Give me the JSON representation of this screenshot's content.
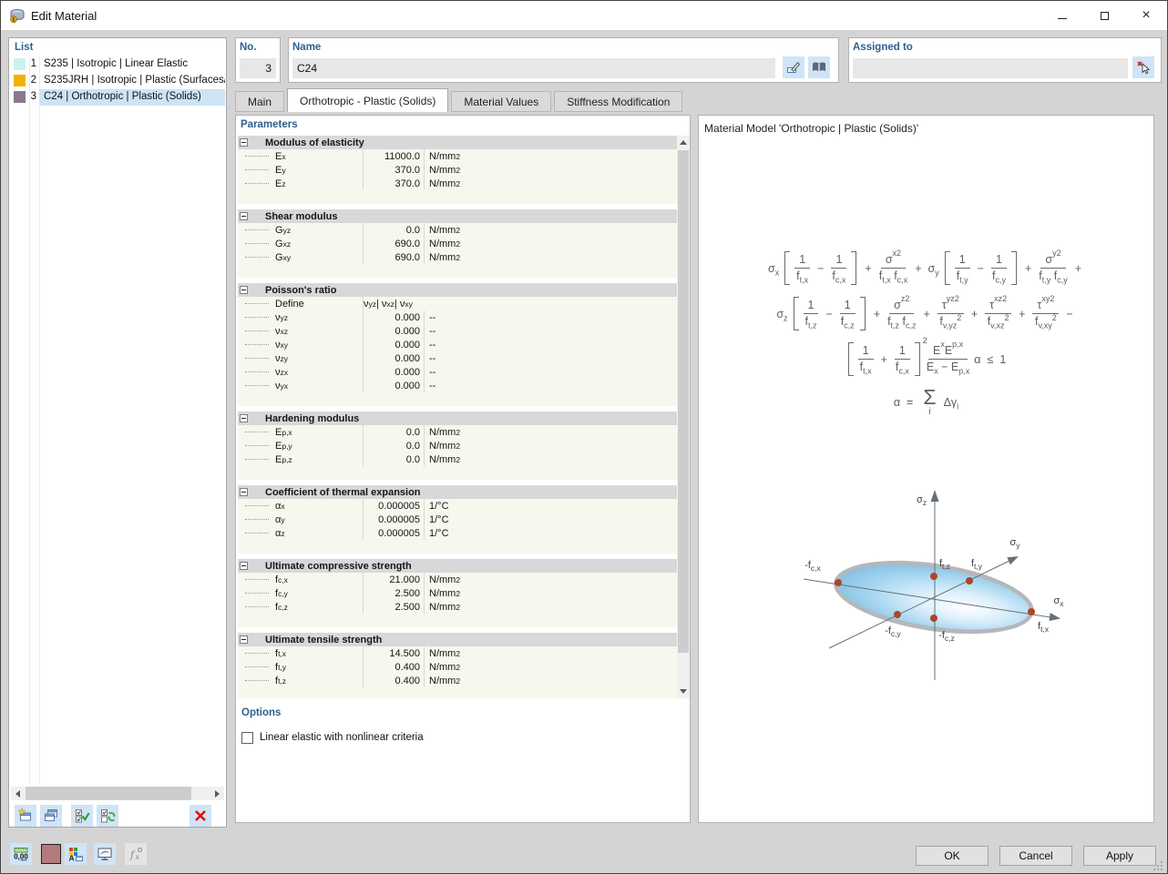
{
  "window": {
    "title": "Edit Material",
    "controls": {
      "minimize": "minimize",
      "maximize": "maximize",
      "close": "×"
    }
  },
  "list": {
    "label": "List",
    "items": [
      {
        "num": "1",
        "name": "S235 | Isotropic | Linear Elastic",
        "color": "#c9f2ef",
        "selected": false
      },
      {
        "num": "2",
        "name": "S235JRH | Isotropic | Plastic (Surfaces/",
        "color": "#f0b400",
        "selected": false
      },
      {
        "num": "3",
        "name": "C24 | Orthotropic | Plastic (Solids)",
        "color": "#8b798b",
        "selected": true
      }
    ]
  },
  "header": {
    "no_label": "No.",
    "no_value": "3",
    "name_label": "Name",
    "name_value": "C24",
    "assigned_label": "Assigned to",
    "assigned_value": ""
  },
  "tabs": [
    {
      "label": "Main",
      "active": false
    },
    {
      "label": "Orthotropic - Plastic (Solids)",
      "active": true
    },
    {
      "label": "Material Values",
      "active": false
    },
    {
      "label": "Stiffness Modification",
      "active": false
    }
  ],
  "parameters": {
    "label": "Parameters",
    "sections": [
      {
        "title": "Modulus of elasticity",
        "rows": [
          {
            "label": "E_x",
            "value": "11000.0",
            "unit": "N/mm^2"
          },
          {
            "label": "E_y",
            "value": "370.0",
            "unit": "N/mm^2"
          },
          {
            "label": "E_z",
            "value": "370.0",
            "unit": "N/mm^2"
          }
        ]
      },
      {
        "title": "Shear modulus",
        "rows": [
          {
            "label": "G_yz",
            "value": "0.0",
            "unit": "N/mm^2"
          },
          {
            "label": "G_xz",
            "value": "690.0",
            "unit": "N/mm^2"
          },
          {
            "label": "G_xy",
            "value": "690.0",
            "unit": "N/mm^2"
          }
        ]
      },
      {
        "title": "Poisson's ratio",
        "rows": [
          {
            "label": "Define",
            "value": "ν_yz | ν_xz | ν_xy",
            "unit": "",
            "wide": true
          },
          {
            "label": "ν_yz",
            "value": "0.000",
            "unit": "--"
          },
          {
            "label": "ν_xz",
            "value": "0.000",
            "unit": "--"
          },
          {
            "label": "ν_xy",
            "value": "0.000",
            "unit": "--"
          },
          {
            "label": "ν_zy",
            "value": "0.000",
            "unit": "--"
          },
          {
            "label": "ν_zx",
            "value": "0.000",
            "unit": "--"
          },
          {
            "label": "ν_yx",
            "value": "0.000",
            "unit": "--"
          }
        ]
      },
      {
        "title": "Hardening modulus",
        "rows": [
          {
            "label": "E_p,x",
            "value": "0.0",
            "unit": "N/mm^2"
          },
          {
            "label": "E_p,y",
            "value": "0.0",
            "unit": "N/mm^2"
          },
          {
            "label": "E_p,z",
            "value": "0.0",
            "unit": "N/mm^2"
          }
        ]
      },
      {
        "title": "Coefficient of thermal expansion",
        "rows": [
          {
            "label": "α_x",
            "value": "0.000005",
            "unit": "1/°C"
          },
          {
            "label": "α_y",
            "value": "0.000005",
            "unit": "1/°C"
          },
          {
            "label": "α_z",
            "value": "0.000005",
            "unit": "1/°C"
          }
        ]
      },
      {
        "title": "Ultimate compressive strength",
        "rows": [
          {
            "label": "f_c,x",
            "value": "21.000",
            "unit": "N/mm^2"
          },
          {
            "label": "f_c,y",
            "value": "2.500",
            "unit": "N/mm^2"
          },
          {
            "label": "f_c,z",
            "value": "2.500",
            "unit": "N/mm^2"
          }
        ]
      },
      {
        "title": "Ultimate tensile strength",
        "rows": [
          {
            "label": "f_t,x",
            "value": "14.500",
            "unit": "N/mm^2"
          },
          {
            "label": "f_t,y",
            "value": "0.400",
            "unit": "N/mm^2"
          },
          {
            "label": "f_t,z",
            "value": "0.400",
            "unit": "N/mm^2"
          }
        ]
      }
    ]
  },
  "options": {
    "label": "Options",
    "checkbox": "Linear elastic with nonlinear criteria",
    "checked": false
  },
  "material_model": {
    "title": "Material Model 'Orthotropic | Plastic (Solids)'",
    "formulas": [
      [
        {
          "sym": "σ_x"
        },
        {
          "bracket": [
            {
              "frac": {
                "n": "1",
                "d": "f_t,x"
              }
            },
            {
              "op": "−"
            },
            {
              "frac": {
                "n": "1",
                "d": "f_c,x"
              }
            }
          ]
        },
        {
          "op": "+"
        },
        {
          "frac": {
            "n": "σ_x^2",
            "d": "f_t,x f_c,x"
          }
        },
        {
          "op": "+"
        },
        {
          "sym": "σ_y"
        },
        {
          "bracket": [
            {
              "frac": {
                "n": "1",
                "d": "f_t,y"
              }
            },
            {
              "op": "−"
            },
            {
              "frac": {
                "n": "1",
                "d": "f_c,y"
              }
            }
          ]
        },
        {
          "op": "+"
        },
        {
          "frac": {
            "n": "σ_y^2",
            "d": "f_t,y f_c,y"
          }
        },
        {
          "op": "+"
        }
      ],
      [
        {
          "sym": "σ_z"
        },
        {
          "bracket": [
            {
              "frac": {
                "n": "1",
                "d": "f_t,z"
              }
            },
            {
              "op": "−"
            },
            {
              "frac": {
                "n": "1",
                "d": "f_c,z"
              }
            }
          ]
        },
        {
          "op": "+"
        },
        {
          "frac": {
            "n": "σ_z^2",
            "d": "f_t,z f_c,z"
          }
        },
        {
          "op": "+"
        },
        {
          "frac": {
            "n": "τ_yz^2",
            "d": "f_v,yz^2"
          }
        },
        {
          "op": "+"
        },
        {
          "frac": {
            "n": "τ_xz^2",
            "d": "f_v,xz^2"
          }
        },
        {
          "op": "+"
        },
        {
          "frac": {
            "n": "τ_xy^2",
            "d": "f_v,xy^2"
          }
        },
        {
          "op": "−"
        }
      ],
      [
        {
          "bracket": [
            {
              "frac": {
                "n": "1",
                "d": "f_t,x"
              }
            },
            {
              "op": "+"
            },
            {
              "frac": {
                "n": "1",
                "d": "f_c,x"
              }
            }
          ],
          "sup": "2"
        },
        {
          "frac": {
            "n": "E_x E_p,x",
            "d": "E_x − E_p,x"
          }
        },
        {
          "sym": "α"
        },
        {
          "op": "≤"
        },
        {
          "sym": "1"
        }
      ],
      [
        {
          "sym": "α"
        },
        {
          "op": "="
        },
        {
          "sum": "i"
        },
        {
          "sym": "Δγ_i"
        }
      ]
    ],
    "diagram": {
      "labels": {
        "sz": "σ_z",
        "sy": "σ_y",
        "sx": "σ_x",
        "ftz": "f_t,z",
        "fty": "f_t,y",
        "ftx": "f_t,x",
        "fcx": "-f_c,x",
        "fcy": "-f_c,y",
        "fcz": "-f_c,z"
      }
    }
  },
  "footer": {
    "ok": "OK",
    "cancel": "Cancel",
    "apply": "Apply"
  },
  "icons": {
    "titlebar": "material-3d-icon",
    "rename": "pencil-icon",
    "library": "book-icon",
    "assign": "cursor-delete-icon",
    "list_new": "new-window-star-icon",
    "list_copy": "copy-windows-icon",
    "list_check": "checkboxes-check-icon",
    "list_sync": "checkboxes-sync-icon",
    "list_delete": "red-x-icon",
    "units": "decimal-ruler-icon",
    "color": "material-color-swatch",
    "display_colors": "palette-letter-icon",
    "screen": "monitor-wave-icon",
    "function": "fx-icon"
  },
  "colors": {
    "accent_selection": "#cde4f7",
    "button_bg": "#cfe4f6",
    "label_blue": "#2f5f8f",
    "swatch_bottom": "#b4797c"
  }
}
